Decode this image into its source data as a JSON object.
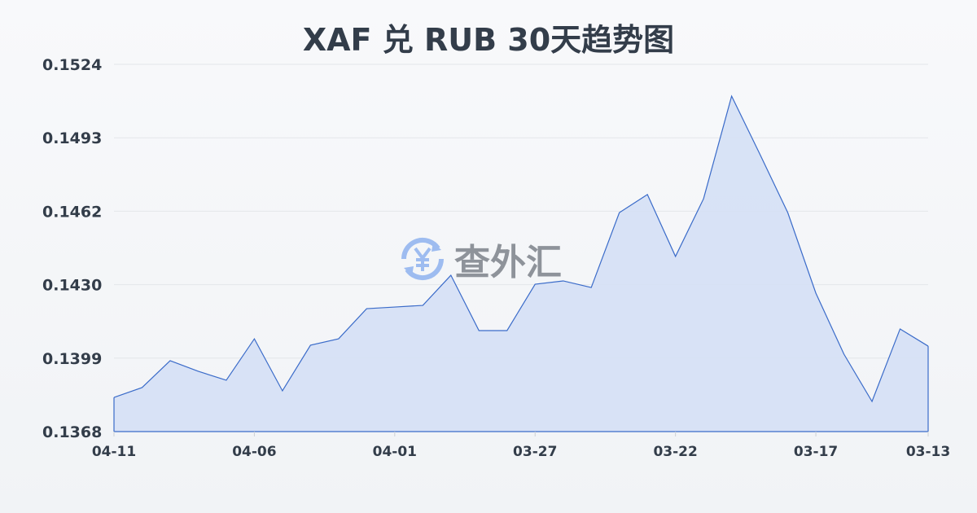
{
  "chart_data": {
    "type": "area",
    "title": "XAF 兑 RUB 30天趋势图",
    "xlabel": "",
    "ylabel": "",
    "x": [
      "04-11",
      "04-10",
      "04-09",
      "04-08",
      "04-07",
      "04-06",
      "04-05",
      "04-04",
      "04-03",
      "04-02",
      "04-01",
      "03-31",
      "03-30",
      "03-29",
      "03-28",
      "03-27",
      "03-26",
      "03-25",
      "03-24",
      "03-23",
      "03-22",
      "03-21",
      "03-20",
      "03-19",
      "03-18",
      "03-17",
      "03-16",
      "03-15",
      "03-14",
      "03-13"
    ],
    "values": [
      0.13825,
      0.13867,
      0.13981,
      0.13936,
      0.13898,
      0.14074,
      0.13853,
      0.14047,
      0.14074,
      0.14202,
      0.14209,
      0.14216,
      0.14344,
      0.14109,
      0.14109,
      0.14306,
      0.1432,
      0.14292,
      0.1461,
      0.14687,
      0.14424,
      0.14669,
      0.15105,
      0.1486,
      0.1461,
      0.14268,
      0.14009,
      0.13808,
      0.14116,
      0.14043
    ],
    "x_tick_labels": [
      "04-11",
      "04-06",
      "04-01",
      "03-27",
      "03-22",
      "03-17",
      "03-13"
    ],
    "y_tick_labels": [
      "0.1524",
      "0.1493",
      "0.1462",
      "0.1430",
      "0.1399",
      "0.1368"
    ],
    "ylim": [
      0.1368,
      0.1524
    ],
    "grid": true,
    "line_color": "#3a6bc9",
    "fill_color": "#d5e0f5"
  },
  "watermark": {
    "text": "查外汇",
    "icon": "yen-exchange-icon"
  }
}
